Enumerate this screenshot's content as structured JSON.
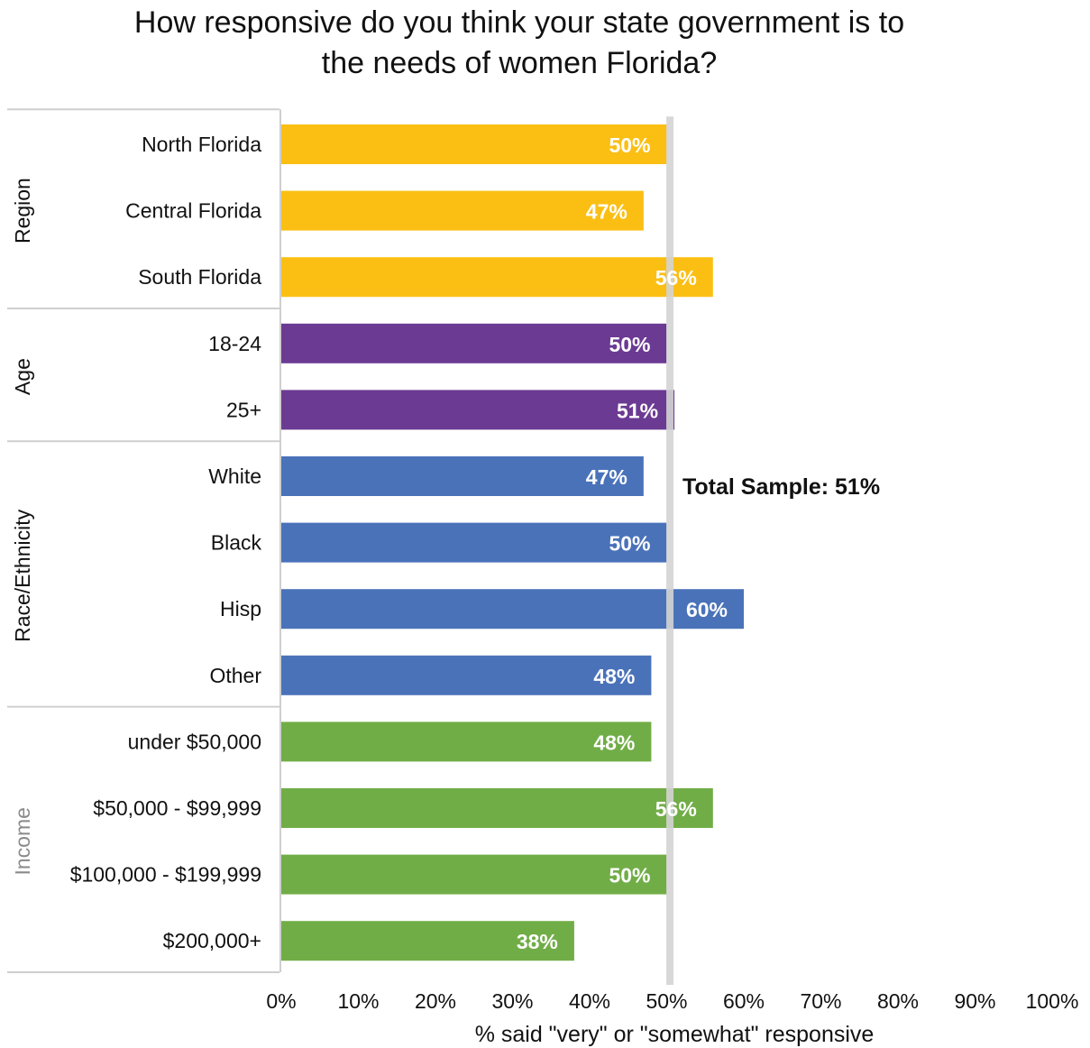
{
  "chart_data": {
    "type": "bar",
    "orientation": "horizontal",
    "title_lines": [
      "How responsive do you think your state government is to",
      "the needs of women Florida?"
    ],
    "xlabel": "% said \"very\" or \"somewhat\" responsive",
    "xlim": [
      0,
      100
    ],
    "x_ticks": [
      "0%",
      "10%",
      "20%",
      "30%",
      "40%",
      "50%",
      "60%",
      "70%",
      "80%",
      "90%",
      "100%"
    ],
    "groups": [
      {
        "name": "Region",
        "color": "#fbbf14",
        "label_muted": false,
        "categories": [
          {
            "label": "North Florida",
            "value": 50,
            "value_label": "50%"
          },
          {
            "label": "Central Florida",
            "value": 47,
            "value_label": "47%"
          },
          {
            "label": "South Florida",
            "value": 56,
            "value_label": "56%"
          }
        ]
      },
      {
        "name": "Age",
        "color": "#6b3a93",
        "label_muted": false,
        "categories": [
          {
            "label": "18-24",
            "value": 50,
            "value_label": "50%"
          },
          {
            "label": "25+",
            "value": 51,
            "value_label": "51%"
          }
        ]
      },
      {
        "name": "Race/Ethnicity",
        "color": "#4a72b9",
        "label_muted": false,
        "categories": [
          {
            "label": "White",
            "value": 47,
            "value_label": "47%"
          },
          {
            "label": "Black",
            "value": 50,
            "value_label": "50%"
          },
          {
            "label": "Hisp",
            "value": 60,
            "value_label": "60%"
          },
          {
            "label": "Other",
            "value": 48,
            "value_label": "48%"
          }
        ]
      },
      {
        "name": "Income",
        "color": "#71ad47",
        "label_muted": true,
        "categories": [
          {
            "label": "under $50,000",
            "value": 48,
            "value_label": "48%"
          },
          {
            "label": "$50,000 - $99,999",
            "value": 56,
            "value_label": "56%"
          },
          {
            "label": "$100,000 - $199,999",
            "value": 50,
            "value_label": "50%"
          },
          {
            "label": "$200,000+",
            "value": 38,
            "value_label": "38%"
          }
        ]
      }
    ],
    "reference_line": {
      "value": 51,
      "label": "Total Sample: 51%",
      "color": "#d4d4d4"
    },
    "grid": false,
    "legend": "none"
  }
}
